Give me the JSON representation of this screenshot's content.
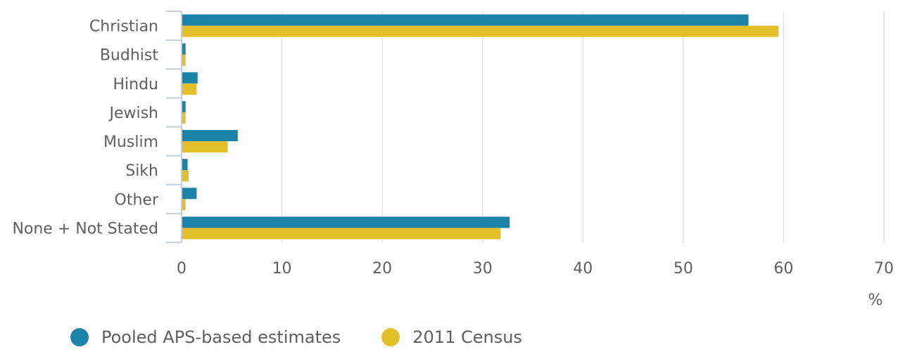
{
  "chart_data": {
    "type": "bar",
    "orientation": "horizontal",
    "categories": [
      "Christian",
      "Budhist",
      "Hindu",
      "Jewish",
      "Muslim",
      "Sikh",
      "Other",
      "None + Not Stated"
    ],
    "series": [
      {
        "name": "Pooled APS-based estimates",
        "color": "#1b82a8",
        "values": [
          56.5,
          0.4,
          1.6,
          0.4,
          5.6,
          0.6,
          1.5,
          32.7
        ]
      },
      {
        "name": "2011 Census",
        "color": "#e3bf2c",
        "values": [
          59.5,
          0.4,
          1.5,
          0.4,
          4.6,
          0.7,
          0.4,
          31.8
        ]
      }
    ],
    "x_ticks": [
      "0",
      "10",
      "20",
      "30",
      "40",
      "50",
      "60",
      "70"
    ],
    "xlim": [
      0,
      70
    ],
    "xlabel": "%",
    "grid": true,
    "legend_position": "bottom"
  }
}
